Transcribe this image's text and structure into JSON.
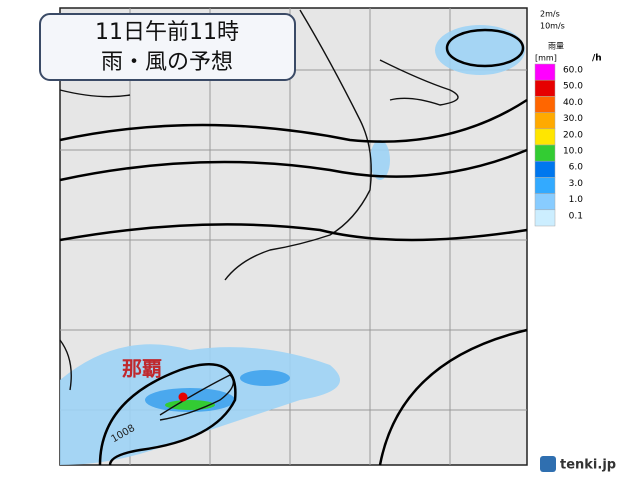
{
  "header": {
    "title_line1": "11日午前11時",
    "title_line2": "雨・風の予想"
  },
  "wind_legend": [
    "2m/s",
    "10m/s"
  ],
  "rain_legend": {
    "title": "雨量",
    "unit": "[mm]",
    "per": "/h",
    "levels": [
      {
        "label": "60.0",
        "color": "#ff00ff"
      },
      {
        "label": "50.0",
        "color": "#e60000"
      },
      {
        "label": "40.0",
        "color": "#ff6600"
      },
      {
        "label": "30.0",
        "color": "#ffaa00"
      },
      {
        "label": "20.0",
        "color": "#ffe600"
      },
      {
        "label": "10.0",
        "color": "#33cc33"
      },
      {
        "label": "6.0",
        "color": "#0077ee"
      },
      {
        "label": "3.0",
        "color": "#33aaff"
      },
      {
        "label": "1.0",
        "color": "#88ccff"
      },
      {
        "label": "0.1",
        "color": "#cceeff"
      }
    ]
  },
  "map": {
    "city": "那覇",
    "isobar_label": "1008"
  },
  "logo": "tenki.jp"
}
